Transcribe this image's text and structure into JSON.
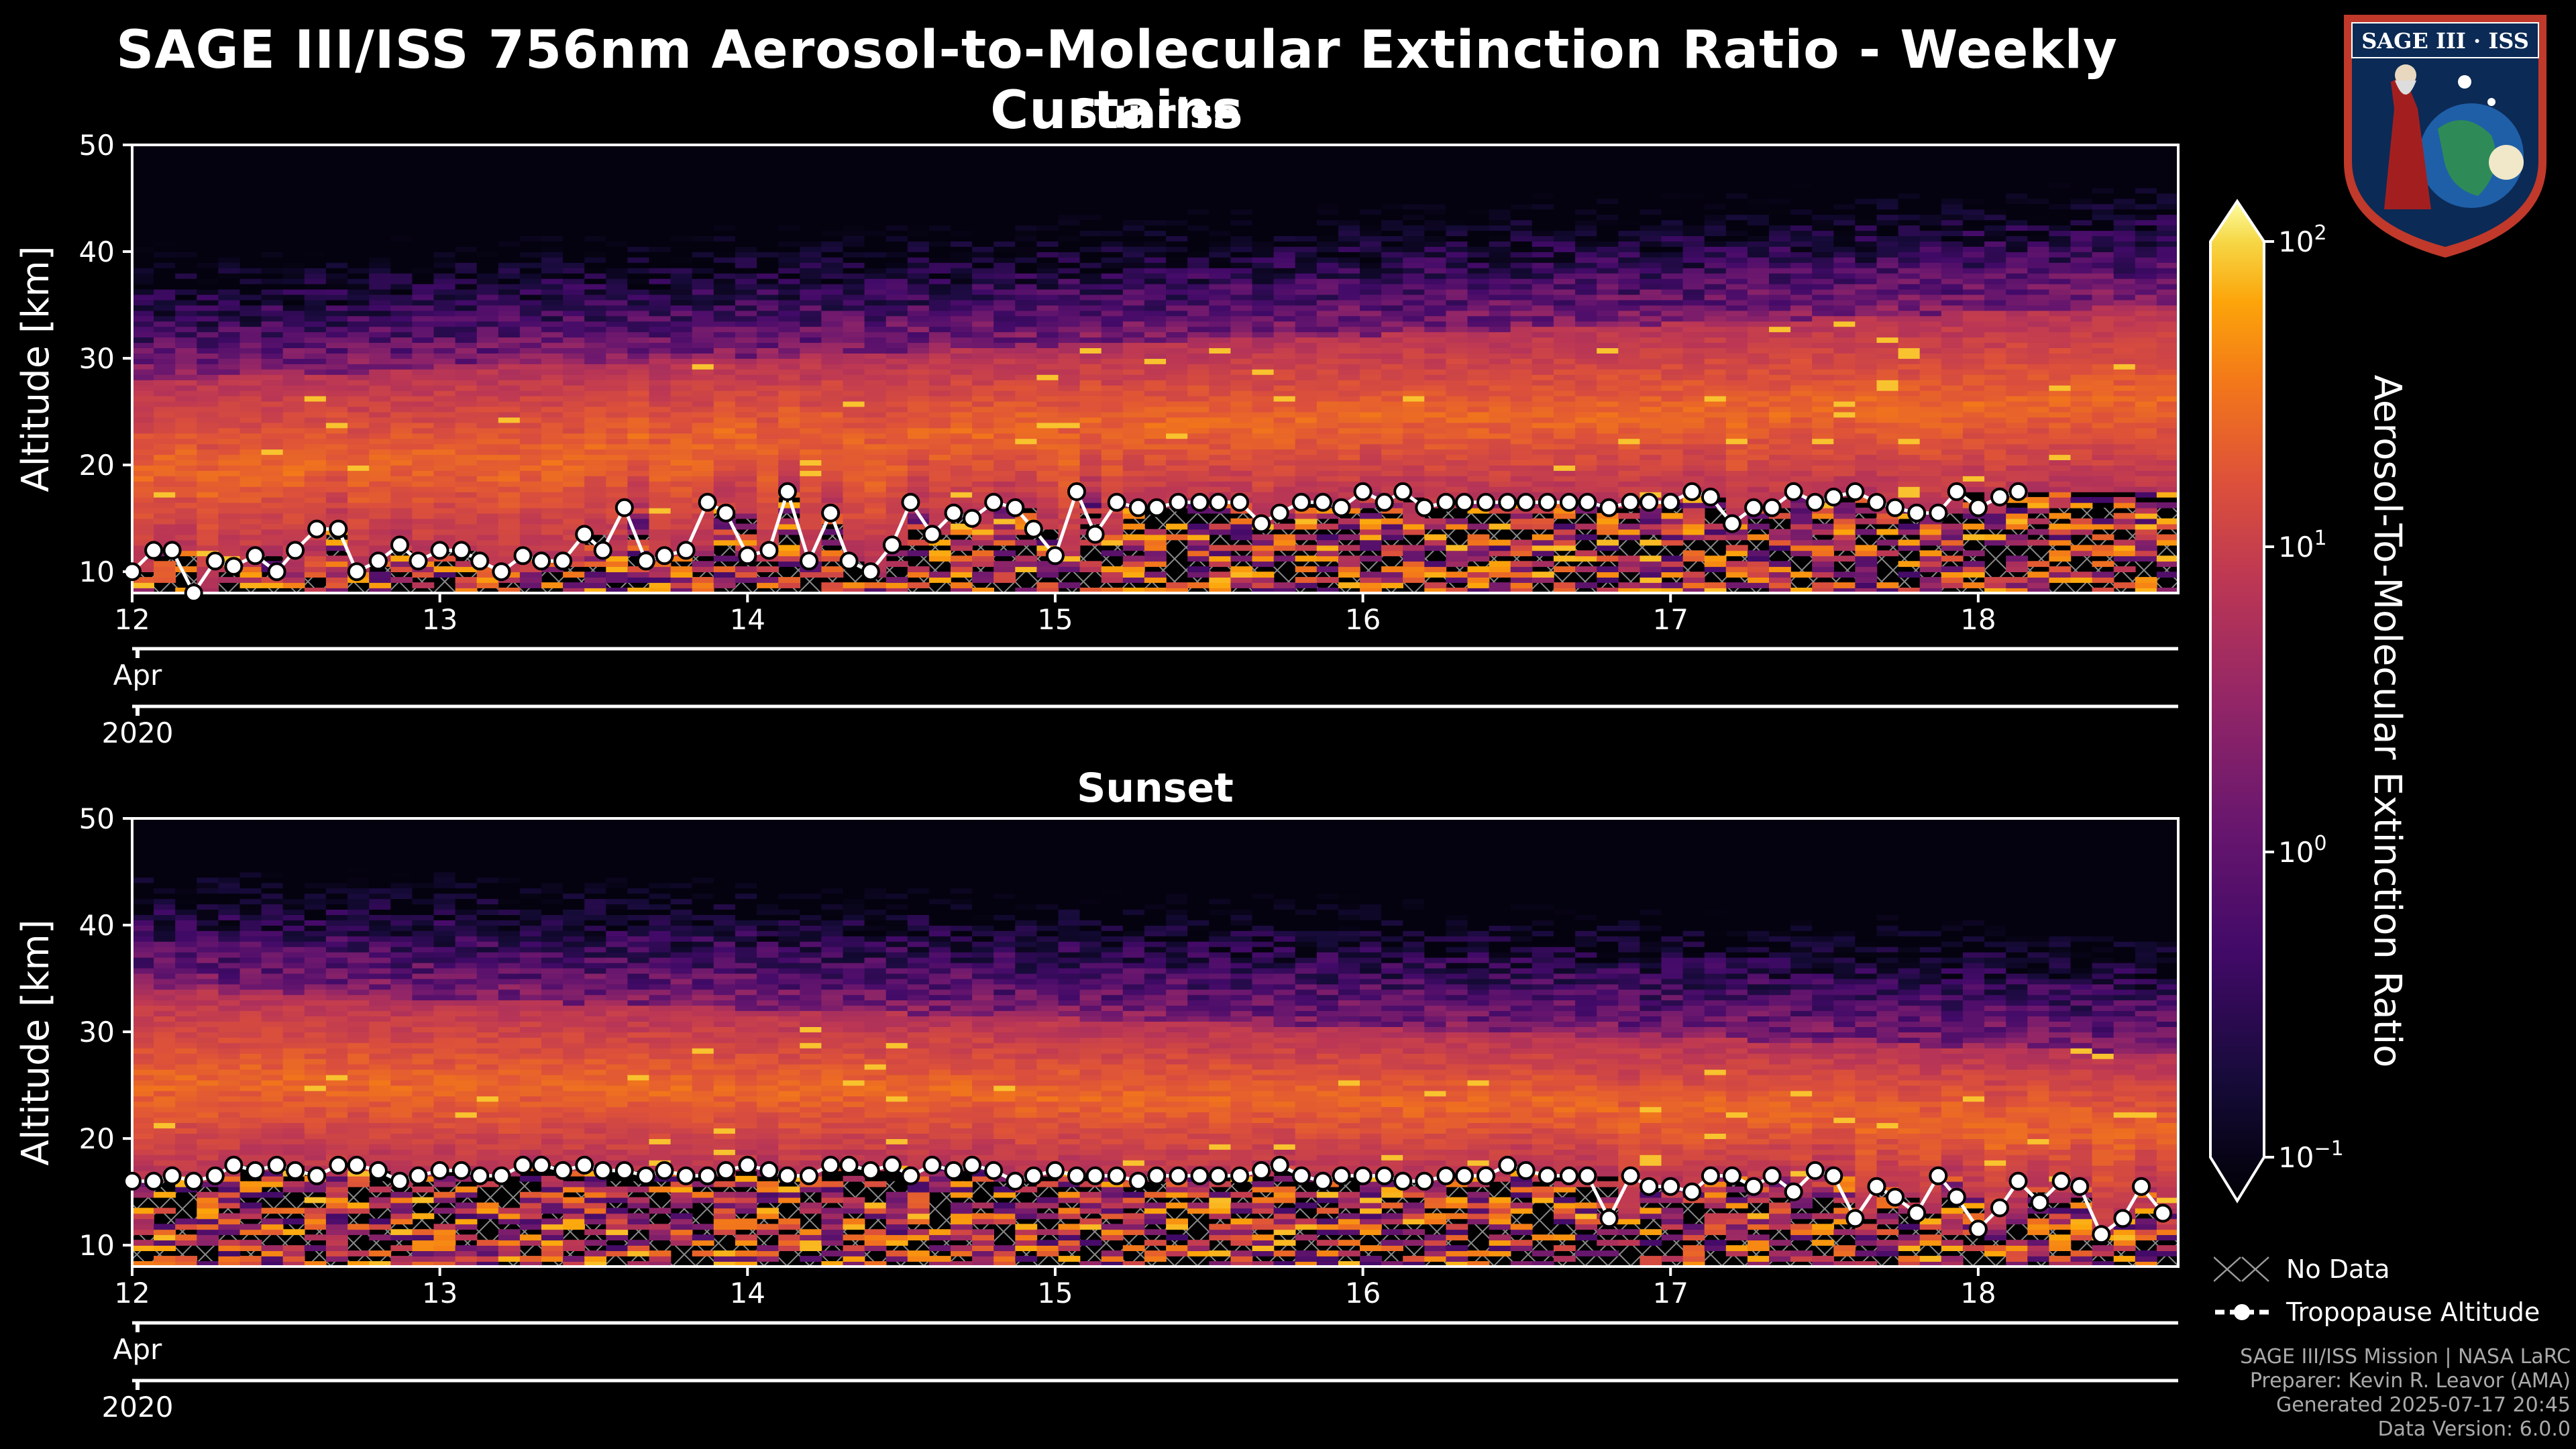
{
  "title": "SAGE III/ISS 756nm Aerosol-to-Molecular Extinction Ratio - Weekly Curtains",
  "colors": {
    "background": "#000000",
    "tropopause": "#ffffff",
    "hatch": "#8a8a8a"
  },
  "colorbar": {
    "label": "Aerosol-To-Molecular Extinction Ratio",
    "colormap": "inferno",
    "scale": "log",
    "range": [
      0.1,
      100
    ],
    "tick_labels": [
      {
        "value": 100,
        "base": "10",
        "exp": "2"
      },
      {
        "value": 10,
        "base": "10",
        "exp": "1"
      },
      {
        "value": 1,
        "base": "10",
        "exp": "0"
      },
      {
        "value": 0.1,
        "base": "10",
        "exp": "−1"
      }
    ]
  },
  "legend": {
    "no_data": "No Data",
    "tropopause": "Tropopause Altitude"
  },
  "credits": [
    "SAGE III/ISS Mission | NASA LaRC",
    "Preparer: Kevin R. Leavor (AMA)",
    "Generated 2025-07-17 20:45",
    "Data Version: 6.0.0"
  ],
  "logo": {
    "text": "SAGE III · ISS",
    "icon": "sage-iii-iss-mission-patch"
  },
  "chart_data": [
    {
      "type": "heatmap",
      "title": "Sunrise",
      "ylabel": "Altitude [km]",
      "ylim": [
        8,
        50
      ],
      "yticks": [
        10,
        20,
        30,
        40,
        50
      ],
      "xlim": [
        12.0,
        18.65
      ],
      "xticks": [
        {
          "value": 12,
          "label": "12"
        },
        {
          "value": 13,
          "label": "13"
        },
        {
          "value": 14,
          "label": "14"
        },
        {
          "value": 15,
          "label": "15"
        },
        {
          "value": 16,
          "label": "16"
        },
        {
          "value": 17,
          "label": "17"
        },
        {
          "value": 18,
          "label": "18"
        }
      ],
      "month_label": "Apr",
      "year_label": "2020",
      "aerosol_layer_top_km": [
        28,
        35
      ],
      "tropopause_altitude_km": [
        [
          12.0,
          10
        ],
        [
          12.07,
          12
        ],
        [
          12.13,
          12
        ],
        [
          12.2,
          8
        ],
        [
          12.27,
          11
        ],
        [
          12.33,
          10.5
        ],
        [
          12.4,
          11.5
        ],
        [
          12.47,
          10
        ],
        [
          12.53,
          12
        ],
        [
          12.6,
          14
        ],
        [
          12.67,
          14
        ],
        [
          12.73,
          10
        ],
        [
          12.8,
          11
        ],
        [
          12.87,
          12.5
        ],
        [
          12.93,
          11
        ],
        [
          13.0,
          12
        ],
        [
          13.07,
          12
        ],
        [
          13.13,
          11
        ],
        [
          13.2,
          10
        ],
        [
          13.27,
          11.5
        ],
        [
          13.33,
          11
        ],
        [
          13.4,
          11
        ],
        [
          13.47,
          13.5
        ],
        [
          13.53,
          12
        ],
        [
          13.6,
          16
        ],
        [
          13.67,
          11
        ],
        [
          13.73,
          11.5
        ],
        [
          13.8,
          12
        ],
        [
          13.87,
          16.5
        ],
        [
          13.93,
          15.5
        ],
        [
          14.0,
          11.5
        ],
        [
          14.07,
          12
        ],
        [
          14.13,
          17.5
        ],
        [
          14.2,
          11
        ],
        [
          14.27,
          15.5
        ],
        [
          14.33,
          11
        ],
        [
          14.4,
          10
        ],
        [
          14.47,
          12.5
        ],
        [
          14.53,
          16.5
        ],
        [
          14.6,
          13.5
        ],
        [
          14.67,
          15.5
        ],
        [
          14.73,
          15
        ],
        [
          14.8,
          16.5
        ],
        [
          14.87,
          16
        ],
        [
          14.93,
          14
        ],
        [
          15.0,
          11.5
        ],
        [
          15.07,
          17.5
        ],
        [
          15.13,
          13.5
        ],
        [
          15.2,
          16.5
        ],
        [
          15.27,
          16
        ],
        [
          15.33,
          16
        ],
        [
          15.4,
          16.5
        ],
        [
          15.47,
          16.5
        ],
        [
          15.53,
          16.5
        ],
        [
          15.6,
          16.5
        ],
        [
          15.67,
          14.5
        ],
        [
          15.73,
          15.5
        ],
        [
          15.8,
          16.5
        ],
        [
          15.87,
          16.5
        ],
        [
          15.93,
          16
        ],
        [
          16.0,
          17.5
        ],
        [
          16.07,
          16.5
        ],
        [
          16.13,
          17.5
        ],
        [
          16.2,
          16
        ],
        [
          16.27,
          16.5
        ],
        [
          16.33,
          16.5
        ],
        [
          16.4,
          16.5
        ],
        [
          16.47,
          16.5
        ],
        [
          16.53,
          16.5
        ],
        [
          16.6,
          16.5
        ],
        [
          16.67,
          16.5
        ],
        [
          16.73,
          16.5
        ],
        [
          16.8,
          16
        ],
        [
          16.87,
          16.5
        ],
        [
          16.93,
          16.5
        ],
        [
          17.0,
          16.5
        ],
        [
          17.07,
          17.5
        ],
        [
          17.13,
          17
        ],
        [
          17.2,
          14.5
        ],
        [
          17.27,
          16
        ],
        [
          17.33,
          16
        ],
        [
          17.4,
          17.5
        ],
        [
          17.47,
          16.5
        ],
        [
          17.53,
          17
        ],
        [
          17.6,
          17.5
        ],
        [
          17.67,
          16.5
        ],
        [
          17.73,
          16
        ],
        [
          17.8,
          15.5
        ],
        [
          17.87,
          15.5
        ],
        [
          17.93,
          17.5
        ],
        [
          18.0,
          16
        ],
        [
          18.07,
          17
        ],
        [
          18.13,
          17.5
        ]
      ]
    },
    {
      "type": "heatmap",
      "title": "Sunset",
      "ylabel": "Altitude [km]",
      "ylim": [
        8,
        50
      ],
      "yticks": [
        10,
        20,
        30,
        40,
        50
      ],
      "xlim": [
        12.0,
        18.65
      ],
      "xticks": [
        {
          "value": 12,
          "label": "12"
        },
        {
          "value": 13,
          "label": "13"
        },
        {
          "value": 14,
          "label": "14"
        },
        {
          "value": 15,
          "label": "15"
        },
        {
          "value": 16,
          "label": "16"
        },
        {
          "value": 17,
          "label": "17"
        },
        {
          "value": 18,
          "label": "18"
        }
      ],
      "month_label": "Apr",
      "year_label": "2020",
      "aerosol_layer_top_km": [
        34,
        28
      ],
      "tropopause_altitude_km": [
        [
          12.0,
          16
        ],
        [
          12.07,
          16
        ],
        [
          12.13,
          16.5
        ],
        [
          12.2,
          16
        ],
        [
          12.27,
          16.5
        ],
        [
          12.33,
          17.5
        ],
        [
          12.4,
          17
        ],
        [
          12.47,
          17.5
        ],
        [
          12.53,
          17
        ],
        [
          12.6,
          16.5
        ],
        [
          12.67,
          17.5
        ],
        [
          12.73,
          17.5
        ],
        [
          12.8,
          17
        ],
        [
          12.87,
          16
        ],
        [
          12.93,
          16.5
        ],
        [
          13.0,
          17
        ],
        [
          13.07,
          17
        ],
        [
          13.13,
          16.5
        ],
        [
          13.2,
          16.5
        ],
        [
          13.27,
          17.5
        ],
        [
          13.33,
          17.5
        ],
        [
          13.4,
          17
        ],
        [
          13.47,
          17.5
        ],
        [
          13.53,
          17
        ],
        [
          13.6,
          17
        ],
        [
          13.67,
          16.5
        ],
        [
          13.73,
          17
        ],
        [
          13.8,
          16.5
        ],
        [
          13.87,
          16.5
        ],
        [
          13.93,
          17
        ],
        [
          14.0,
          17.5
        ],
        [
          14.07,
          17
        ],
        [
          14.13,
          16.5
        ],
        [
          14.2,
          16.5
        ],
        [
          14.27,
          17.5
        ],
        [
          14.33,
          17.5
        ],
        [
          14.4,
          17
        ],
        [
          14.47,
          17.5
        ],
        [
          14.53,
          16.5
        ],
        [
          14.6,
          17.5
        ],
        [
          14.67,
          17
        ],
        [
          14.73,
          17.5
        ],
        [
          14.8,
          17
        ],
        [
          14.87,
          16
        ],
        [
          14.93,
          16.5
        ],
        [
          15.0,
          17
        ],
        [
          15.07,
          16.5
        ],
        [
          15.13,
          16.5
        ],
        [
          15.2,
          16.5
        ],
        [
          15.27,
          16
        ],
        [
          15.33,
          16.5
        ],
        [
          15.4,
          16.5
        ],
        [
          15.47,
          16.5
        ],
        [
          15.53,
          16.5
        ],
        [
          15.6,
          16.5
        ],
        [
          15.67,
          17
        ],
        [
          15.73,
          17.5
        ],
        [
          15.8,
          16.5
        ],
        [
          15.87,
          16
        ],
        [
          15.93,
          16.5
        ],
        [
          16.0,
          16.5
        ],
        [
          16.07,
          16.5
        ],
        [
          16.13,
          16
        ],
        [
          16.2,
          16
        ],
        [
          16.27,
          16.5
        ],
        [
          16.33,
          16.5
        ],
        [
          16.4,
          16.5
        ],
        [
          16.47,
          17.5
        ],
        [
          16.53,
          17
        ],
        [
          16.6,
          16.5
        ],
        [
          16.67,
          16.5
        ],
        [
          16.73,
          16.5
        ],
        [
          16.8,
          12.5
        ],
        [
          16.87,
          16.5
        ],
        [
          16.93,
          15.5
        ],
        [
          17.0,
          15.5
        ],
        [
          17.07,
          15
        ],
        [
          17.13,
          16.5
        ],
        [
          17.2,
          16.5
        ],
        [
          17.27,
          15.5
        ],
        [
          17.33,
          16.5
        ],
        [
          17.4,
          15
        ],
        [
          17.47,
          17
        ],
        [
          17.53,
          16.5
        ],
        [
          17.6,
          12.5
        ],
        [
          17.67,
          15.5
        ],
        [
          17.73,
          14.5
        ],
        [
          17.8,
          13
        ],
        [
          17.87,
          16.5
        ],
        [
          17.93,
          14.5
        ],
        [
          18.0,
          11.5
        ],
        [
          18.07,
          13.5
        ],
        [
          18.13,
          16
        ],
        [
          18.2,
          14
        ],
        [
          18.27,
          16
        ],
        [
          18.33,
          15.5
        ],
        [
          18.4,
          11
        ],
        [
          18.47,
          12.5
        ],
        [
          18.53,
          15.5
        ],
        [
          18.6,
          13
        ]
      ]
    }
  ]
}
